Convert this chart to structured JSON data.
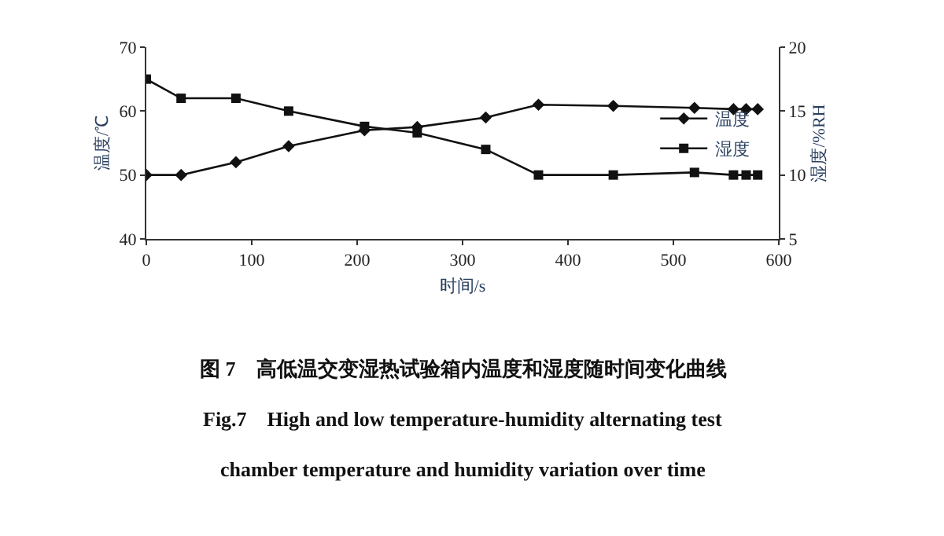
{
  "chart_data": {
    "type": "line",
    "xlabel": "时间/s",
    "ylabel": "温度/℃",
    "y2label": "湿度/%RH",
    "xlim": [
      0,
      600
    ],
    "xticks": [
      0,
      100,
      200,
      300,
      400,
      500,
      600
    ],
    "ylim": [
      40,
      70
    ],
    "yticks": [
      40,
      50,
      60,
      70
    ],
    "y2lim": [
      5,
      20
    ],
    "y2ticks": [
      5,
      10,
      15,
      20
    ],
    "legend": "right",
    "line_style": "solid",
    "series": [
      {
        "name": "温度",
        "color": "#111111",
        "marker": "diamond",
        "x": [
          0,
          33,
          85,
          135,
          207,
          257,
          322,
          372,
          443,
          520,
          557,
          569,
          580
        ],
        "values": [
          50,
          50,
          52,
          54.5,
          57,
          57.5,
          59,
          61,
          60.8,
          60.5,
          60.3,
          60.3,
          60.3
        ]
      },
      {
        "name": "湿度",
        "color": "#111111",
        "marker": "square",
        "axis": "y2",
        "x": [
          0,
          33,
          85,
          135,
          207,
          257,
          322,
          372,
          443,
          520,
          557,
          569,
          580
        ],
        "values": [
          17.5,
          16,
          16,
          15,
          13.8,
          13.3,
          12,
          10,
          10,
          10.2,
          10,
          10,
          10
        ]
      }
    ],
    "annotations": [
      "图 7　高低温交变湿热试验箱内温度和湿度随时间变化曲线",
      "Fig.7　High and low temperature-humidity alternating test",
      "chamber temperature and humidity variation over time"
    ]
  }
}
